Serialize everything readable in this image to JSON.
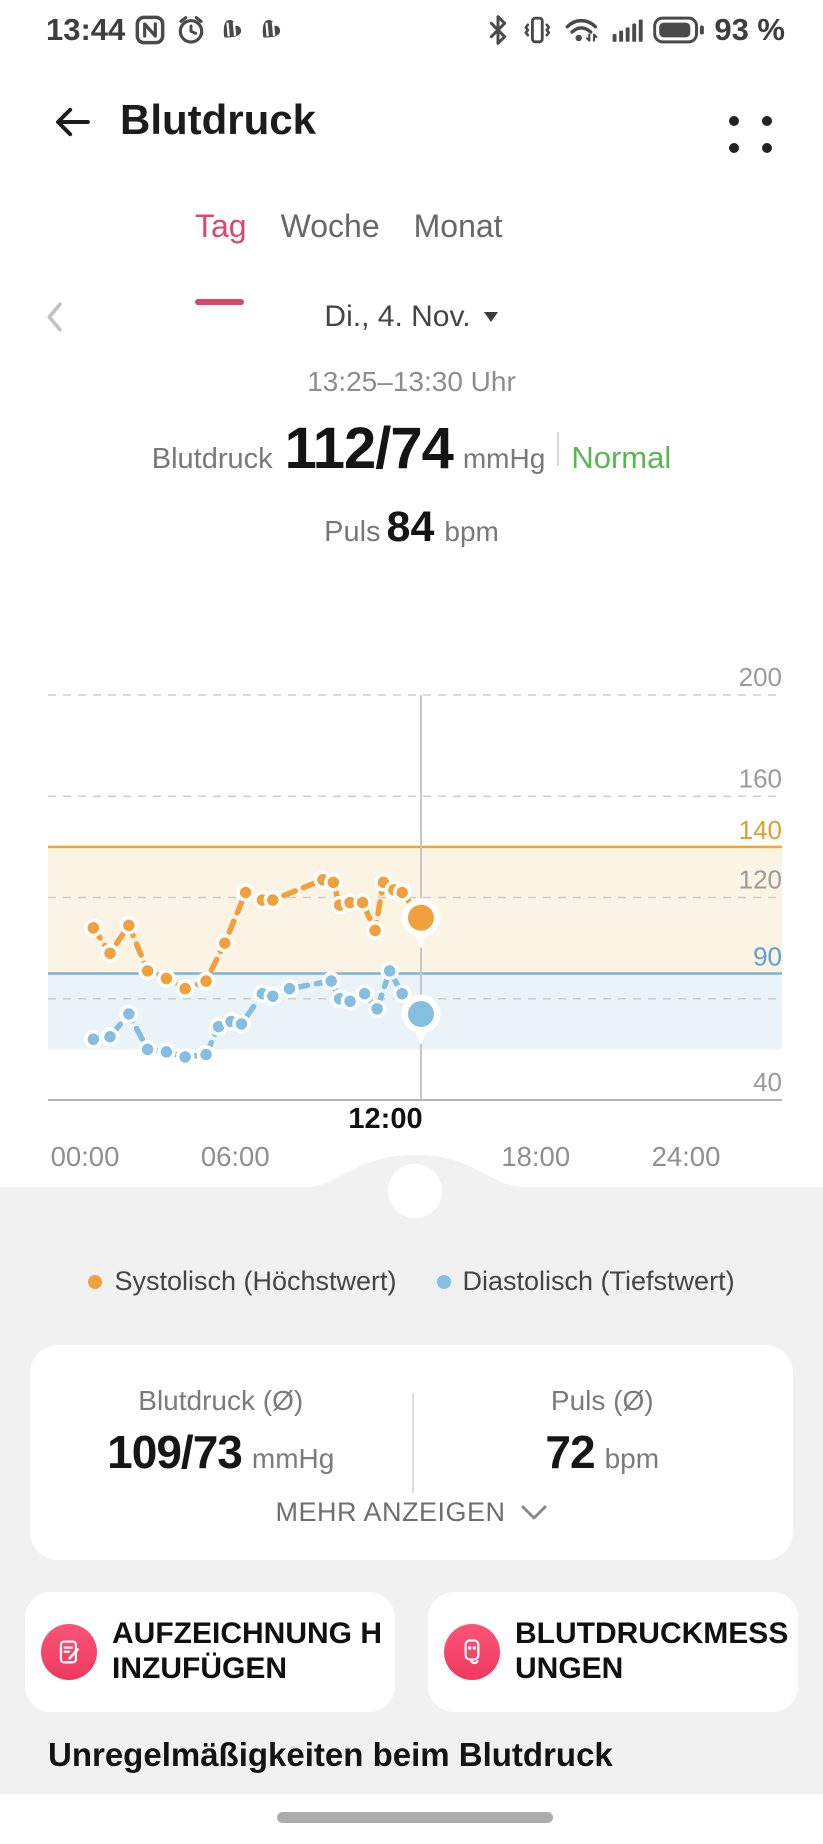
{
  "colors": {
    "accent": "#d8486d",
    "status_normal": "#58b750",
    "systolic": "#F0A03C",
    "diastolic": "#85BEDF",
    "section_bg": "#f1f1f1"
  },
  "status_bar": {
    "time": "13:44",
    "battery_percent": "93 %",
    "left_icons": [
      "nfc",
      "alarm",
      "heart",
      "heart"
    ],
    "right_icons": [
      "bluetooth",
      "vibrate",
      "wifi",
      "signal",
      "battery"
    ]
  },
  "header": {
    "title": "Blutdruck"
  },
  "tabs": {
    "items": [
      {
        "label": "Tag",
        "active": true
      },
      {
        "label": "Woche",
        "active": false
      },
      {
        "label": "Monat",
        "active": false
      }
    ]
  },
  "date_nav": {
    "label": "Di., 4. Nov."
  },
  "selected_reading": {
    "time_range": "13:25–13:30 Uhr",
    "bp_label": "Blutdruck",
    "bp_value": "112/74",
    "bp_unit": "mmHg",
    "status": "Normal",
    "pulse_label": "Puls",
    "pulse_value": "84",
    "pulse_unit": "bpm"
  },
  "chart_data": {
    "type": "line",
    "title": "Blutdruck Tagesverlauf",
    "x_axis": {
      "labels": [
        "00:00",
        "06:00",
        "12:00",
        "18:00",
        "24:00"
      ],
      "highlight": "12:00",
      "range_hours": [
        0,
        24
      ]
    },
    "y_axis": {
      "range": [
        40,
        200
      ],
      "gridlines": [
        {
          "value": 200,
          "label": "200",
          "style": "dashed"
        },
        {
          "value": 160,
          "label": "160",
          "style": "dashed"
        },
        {
          "value": 120,
          "label": "120",
          "style": "dashed"
        },
        {
          "value": 80,
          "label": "",
          "style": "dashed"
        },
        {
          "value": 40,
          "label": "40",
          "style": "solid"
        }
      ]
    },
    "thresholds": [
      {
        "value": 140,
        "label": "140",
        "line_color": "#E8A93F",
        "label_color": "#DF9E2F",
        "band_to": 90,
        "band_color": "#FBF3E3"
      },
      {
        "value": 90,
        "label": "90",
        "line_color": "#7FB4D6",
        "label_color": "#5C9FD0",
        "band_to": 60,
        "band_color": "#E9F3F8"
      }
    ],
    "cursor_time": "13:25",
    "series": [
      {
        "name": "Systolisch (Höchstwert)",
        "color": "#F0A03C",
        "points": [
          [
            "00:20",
            108
          ],
          [
            "01:00",
            98
          ],
          [
            "01:45",
            109
          ],
          [
            "02:30",
            91
          ],
          [
            "03:15",
            88
          ],
          [
            "04:00",
            84
          ],
          [
            "04:50",
            87
          ],
          [
            "05:35",
            102
          ],
          [
            "06:25",
            122
          ],
          [
            "07:05",
            119
          ],
          [
            "07:30",
            119
          ],
          [
            "09:30",
            127
          ],
          [
            "09:55",
            126
          ],
          [
            "10:10",
            117
          ],
          [
            "10:35",
            118
          ],
          [
            "11:05",
            118
          ],
          [
            "11:35",
            107
          ],
          [
            "11:55",
            126
          ],
          [
            "12:20",
            123
          ],
          [
            "12:40",
            122
          ]
        ],
        "selected": [
          "13:25",
          112
        ]
      },
      {
        "name": "Diastolisch (Tiefstwert)",
        "color": "#85BEDF",
        "points": [
          [
            "00:20",
            64
          ],
          [
            "01:00",
            65
          ],
          [
            "01:45",
            74
          ],
          [
            "02:30",
            60
          ],
          [
            "03:15",
            59
          ],
          [
            "04:00",
            57
          ],
          [
            "04:50",
            58
          ],
          [
            "05:20",
            69
          ],
          [
            "05:50",
            71
          ],
          [
            "06:15",
            70
          ],
          [
            "07:05",
            82
          ],
          [
            "07:30",
            81
          ],
          [
            "08:10",
            84
          ],
          [
            "09:50",
            87
          ],
          [
            "10:10",
            80
          ],
          [
            "10:35",
            79
          ],
          [
            "11:10",
            82
          ],
          [
            "11:40",
            76
          ],
          [
            "12:10",
            91
          ],
          [
            "12:40",
            82
          ]
        ],
        "selected": [
          "13:25",
          74
        ]
      }
    ]
  },
  "legend": {
    "items": [
      {
        "label": "Systolisch (Höchstwert)"
      },
      {
        "label": "Diastolisch (Tiefstwert)"
      }
    ]
  },
  "summary_card": {
    "left_label": "Blutdruck (Ø)",
    "left_value": "109/73",
    "left_unit": "mmHg",
    "right_label": "Puls (Ø)",
    "right_value": "72",
    "right_unit": "bpm",
    "more_label": "MEHR ANZEIGEN"
  },
  "action_buttons": [
    {
      "label": "AUFZEICHNUNG HINZUFÜGEN",
      "icon": "note-add-icon"
    },
    {
      "label": "BLUTDRUCKMESSUNGEN",
      "icon": "bp-monitor-icon"
    }
  ],
  "section_heading": "Unregelmäßigkeiten beim Blutdruck"
}
